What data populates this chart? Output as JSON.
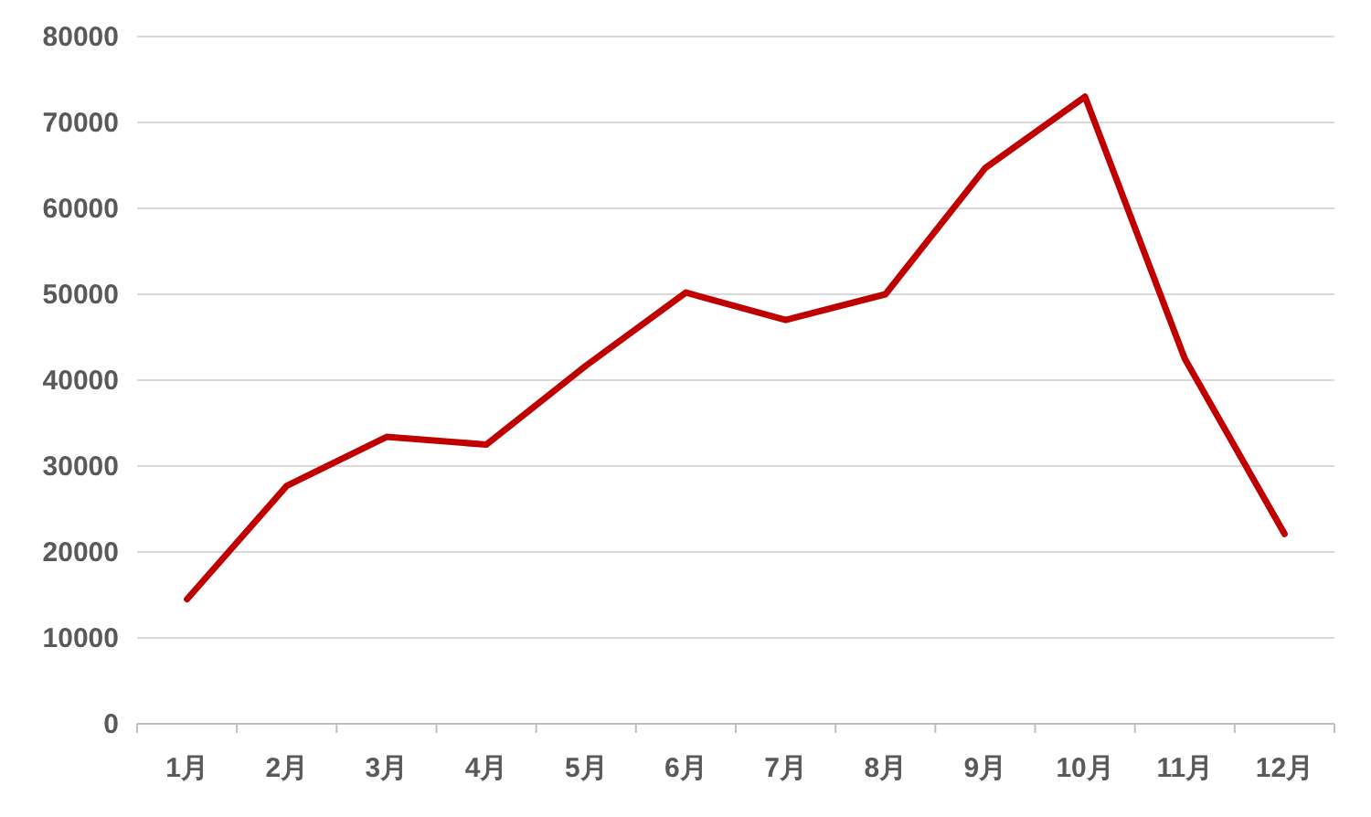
{
  "chart_data": {
    "type": "line",
    "categories": [
      "1月",
      "2月",
      "3月",
      "4月",
      "5月",
      "6月",
      "7月",
      "8月",
      "9月",
      "10月",
      "11月",
      "12月"
    ],
    "series": [
      {
        "color": "#c00000",
        "values": [
          14500,
          27700,
          33400,
          32500,
          41700,
          50200,
          47000,
          50000,
          64700,
          73000,
          42500,
          22100
        ]
      }
    ],
    "ylim": [
      0,
      80000
    ],
    "yticks": [
      0,
      10000,
      20000,
      30000,
      40000,
      50000,
      60000,
      70000,
      80000
    ],
    "grid": "y",
    "marker": "none",
    "line_style": "solid"
  }
}
